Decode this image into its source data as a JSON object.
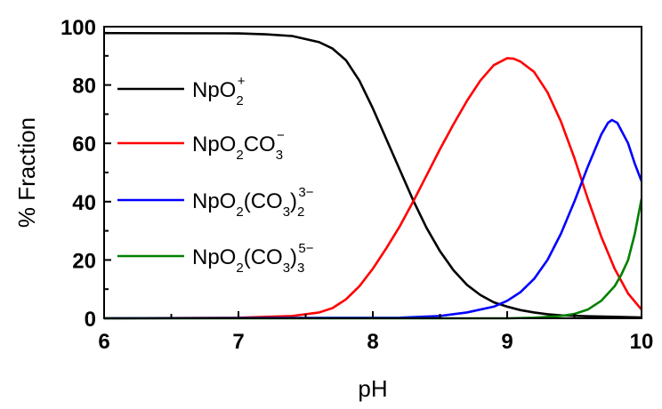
{
  "chart_data": {
    "type": "line",
    "xlabel": "pH",
    "ylabel": "% Fraction",
    "xlim": [
      6,
      10
    ],
    "ylim": [
      0,
      100
    ],
    "xticks": [
      6,
      7,
      8,
      9,
      10
    ],
    "yticks": [
      0,
      20,
      40,
      60,
      80,
      100
    ],
    "grid": false,
    "legend_position": "left",
    "series": [
      {
        "name": "NpO2+",
        "label_parts": [
          {
            "t": "NpO"
          },
          {
            "t": "2",
            "pos": "sub"
          },
          {
            "t": "+",
            "pos": "sup"
          }
        ],
        "color": "#000000",
        "points": [
          [
            6.0,
            97.8
          ],
          [
            7.0,
            97.7
          ],
          [
            7.2,
            97.4
          ],
          [
            7.4,
            96.8
          ],
          [
            7.6,
            94.7
          ],
          [
            7.7,
            92.5
          ],
          [
            7.8,
            88.5
          ],
          [
            7.9,
            81.5
          ],
          [
            8.0,
            72.0
          ],
          [
            8.1,
            61.5
          ],
          [
            8.2,
            51.0
          ],
          [
            8.3,
            40.5
          ],
          [
            8.4,
            31.0
          ],
          [
            8.5,
            23.0
          ],
          [
            8.6,
            16.5
          ],
          [
            8.7,
            11.5
          ],
          [
            8.8,
            8.0
          ],
          [
            8.9,
            5.5
          ],
          [
            9.0,
            4.0
          ],
          [
            9.1,
            2.8
          ],
          [
            9.2,
            2.0
          ],
          [
            9.3,
            1.4
          ],
          [
            9.4,
            1.0
          ],
          [
            9.6,
            0.7
          ],
          [
            9.8,
            0.5
          ],
          [
            10.0,
            0.3
          ]
        ]
      },
      {
        "name": "NpO2CO3-",
        "label_parts": [
          {
            "t": "NpO"
          },
          {
            "t": "2",
            "pos": "sub"
          },
          {
            "t": "CO"
          },
          {
            "t": "3",
            "pos": "sub"
          },
          {
            "t": "−",
            "pos": "sup"
          }
        ],
        "color": "#ff0000",
        "points": [
          [
            6.0,
            0.0
          ],
          [
            7.0,
            0.2
          ],
          [
            7.4,
            0.8
          ],
          [
            7.6,
            2.0
          ],
          [
            7.7,
            3.5
          ],
          [
            7.8,
            6.5
          ],
          [
            7.9,
            11.0
          ],
          [
            8.0,
            17.0
          ],
          [
            8.1,
            24.0
          ],
          [
            8.2,
            31.5
          ],
          [
            8.3,
            40.0
          ],
          [
            8.4,
            49.0
          ],
          [
            8.5,
            58.0
          ],
          [
            8.6,
            66.5
          ],
          [
            8.7,
            74.5
          ],
          [
            8.8,
            81.5
          ],
          [
            8.9,
            86.8
          ],
          [
            9.0,
            89.2
          ],
          [
            9.05,
            89.0
          ],
          [
            9.1,
            88.0
          ],
          [
            9.2,
            84.5
          ],
          [
            9.3,
            77.5
          ],
          [
            9.4,
            67.5
          ],
          [
            9.5,
            55.0
          ],
          [
            9.6,
            41.0
          ],
          [
            9.7,
            28.0
          ],
          [
            9.8,
            17.0
          ],
          [
            9.9,
            8.5
          ],
          [
            10.0,
            3.0
          ]
        ]
      },
      {
        "name": "NpO2(CO3)2 3-",
        "label_parts": [
          {
            "t": "NpO"
          },
          {
            "t": "2",
            "pos": "sub"
          },
          {
            "t": "(CO"
          },
          {
            "t": "3",
            "pos": "sub"
          },
          {
            "t": ")"
          },
          {
            "t": "2",
            "pos": "sub"
          },
          {
            "t": "3−",
            "pos": "sup"
          }
        ],
        "color": "#0000ff",
        "points": [
          [
            6.0,
            0.0
          ],
          [
            8.2,
            0.2
          ],
          [
            8.5,
            0.8
          ],
          [
            8.7,
            2.0
          ],
          [
            8.9,
            4.0
          ],
          [
            9.0,
            6.0
          ],
          [
            9.1,
            9.0
          ],
          [
            9.2,
            13.5
          ],
          [
            9.3,
            20.0
          ],
          [
            9.4,
            29.0
          ],
          [
            9.5,
            40.0
          ],
          [
            9.6,
            52.0
          ],
          [
            9.7,
            63.0
          ],
          [
            9.75,
            67.0
          ],
          [
            9.78,
            68.0
          ],
          [
            9.82,
            67.0
          ],
          [
            9.9,
            60.0
          ],
          [
            9.95,
            53.0
          ],
          [
            10.0,
            47.0
          ]
        ]
      },
      {
        "name": "NpO2(CO3)3 5-",
        "label_parts": [
          {
            "t": "NpO"
          },
          {
            "t": "2",
            "pos": "sub"
          },
          {
            "t": "(CO"
          },
          {
            "t": "3",
            "pos": "sub"
          },
          {
            "t": ")"
          },
          {
            "t": "3",
            "pos": "sub"
          },
          {
            "t": "5−",
            "pos": "sup"
          }
        ],
        "color": "#008000",
        "points": [
          [
            6.0,
            0.0
          ],
          [
            9.0,
            0.0
          ],
          [
            9.2,
            0.2
          ],
          [
            9.4,
            0.8
          ],
          [
            9.5,
            1.5
          ],
          [
            9.6,
            3.0
          ],
          [
            9.7,
            6.0
          ],
          [
            9.8,
            11.0
          ],
          [
            9.85,
            15.0
          ],
          [
            9.9,
            20.0
          ],
          [
            9.95,
            29.0
          ],
          [
            10.0,
            41.0
          ]
        ]
      }
    ]
  }
}
